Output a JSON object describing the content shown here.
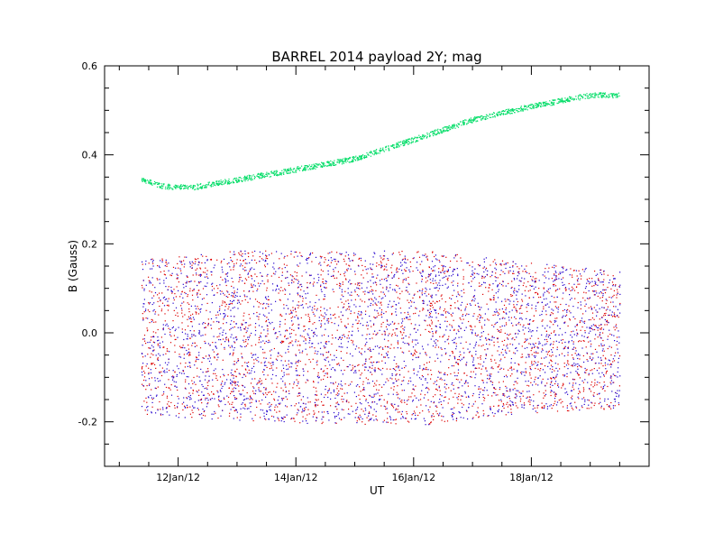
{
  "chart_data": {
    "type": "scatter",
    "title": "BARREL 2014 payload 2Y; mag",
    "xlabel": "UT",
    "ylabel": "B (Gauss)",
    "xlim": [
      "2012-01-10T18:00",
      "2012-01-20T00:00"
    ],
    "ylim": [
      -0.3,
      0.6
    ],
    "x_ticks": [
      "12Jan/12",
      "14Jan/12",
      "16Jan/12",
      "18Jan/12"
    ],
    "x_tick_dates": [
      "2012-01-12",
      "2012-01-14",
      "2012-01-16",
      "2012-01-18"
    ],
    "y_ticks": [
      "-0.2",
      "0.0",
      "0.2",
      "0.4",
      "0.6"
    ],
    "y_tick_values": [
      -0.2,
      0.0,
      0.2,
      0.4,
      0.6
    ],
    "grid": false,
    "series": [
      {
        "color": "#00dd66",
        "description_points": [
          {
            "x": "2012-01-11T09:00",
            "y": 0.345
          },
          {
            "x": "2012-01-11T18:00",
            "y": 0.33
          },
          {
            "x": "2012-01-12T06:00",
            "y": 0.328
          },
          {
            "x": "2012-01-13T00:00",
            "y": 0.345
          },
          {
            "x": "2012-01-14T00:00",
            "y": 0.368
          },
          {
            "x": "2012-01-15T00:00",
            "y": 0.392
          },
          {
            "x": "2012-01-16T00:00",
            "y": 0.435
          },
          {
            "x": "2012-01-17T00:00",
            "y": 0.48
          },
          {
            "x": "2012-01-18T00:00",
            "y": 0.51
          },
          {
            "x": "2012-01-19T00:00",
            "y": 0.535
          },
          {
            "x": "2012-01-19T12:00",
            "y": 0.535
          }
        ]
      },
      {
        "color": "#dd0000",
        "x_range": [
          "2012-01-11T09:00",
          "2012-01-19T12:00"
        ],
        "upper_envelope": [
          0.165,
          0.185,
          0.185,
          0.185,
          0.16,
          0.14
        ],
        "lower_envelope": [
          -0.185,
          -0.195,
          -0.205,
          -0.205,
          -0.18,
          -0.17
        ]
      },
      {
        "color": "#2200cc",
        "x_range": [
          "2012-01-11T09:00",
          "2012-01-19T12:00"
        ],
        "upper_envelope": [
          0.165,
          0.185,
          0.185,
          0.185,
          0.16,
          0.14
        ],
        "lower_envelope": [
          -0.185,
          -0.195,
          -0.205,
          -0.205,
          -0.18,
          -0.17
        ]
      }
    ]
  }
}
